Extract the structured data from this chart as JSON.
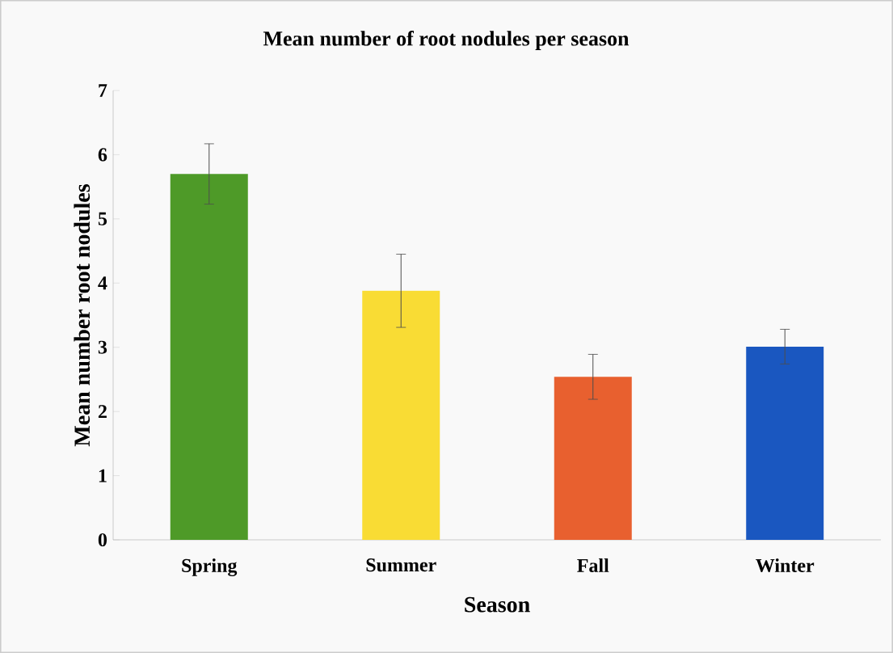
{
  "chart_data": {
    "type": "bar",
    "title": "Mean number of root nodules per season",
    "xlabel": "Season",
    "ylabel": "Mean number root nodules",
    "categories": [
      "Spring",
      "Summer",
      "Fall",
      "Winter"
    ],
    "values": [
      5.7,
      3.88,
      2.54,
      3.01
    ],
    "errors": [
      0.47,
      0.57,
      0.35,
      0.27
    ],
    "colors": [
      "#4e9a28",
      "#f9dc34",
      "#e8602f",
      "#1a57c0"
    ],
    "ylim": [
      0,
      7
    ],
    "yticks": [
      0,
      1,
      2,
      3,
      4,
      5,
      6,
      7
    ],
    "grid": false
  }
}
